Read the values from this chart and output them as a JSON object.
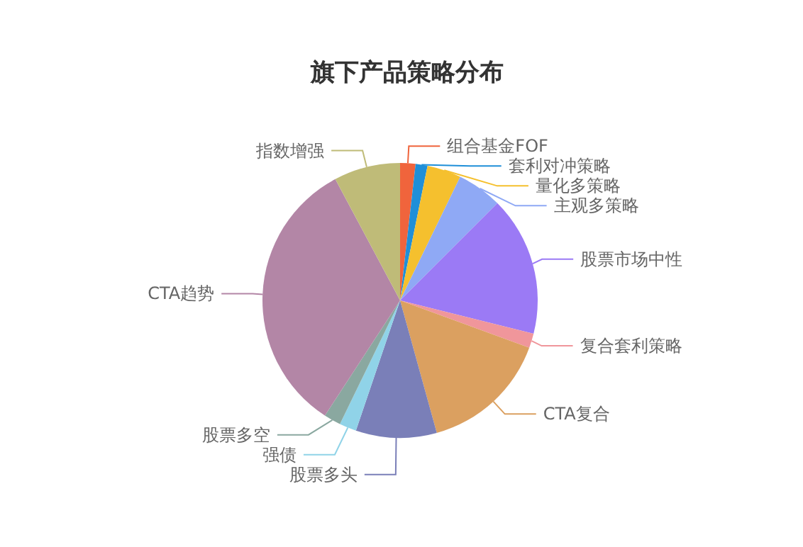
{
  "chart_data": {
    "type": "pie",
    "title": "旗下产品策略分布",
    "categories": [
      "组合基金FOF",
      "套利对冲策略",
      "量化多策略",
      "主观多策略",
      "股票市场中性",
      "复合套利策略",
      "CTA复合",
      "股票多头",
      "强债",
      "股票多空",
      "CTA趋势",
      "指数增强"
    ],
    "values": [
      1.8,
      1.4,
      4,
      5.3,
      16.4,
      1.7,
      15.1,
      9.5,
      2,
      2,
      33,
      7.8
    ],
    "colors": [
      "#f0643c",
      "#1f8fd8",
      "#f5c02e",
      "#8fa9f5",
      "#9b7af5",
      "#f0969b",
      "#dba060",
      "#7a7fb8",
      "#90d3e8",
      "#8aa8a0",
      "#b386a6",
      "#bfbb78"
    ],
    "legend": false
  }
}
